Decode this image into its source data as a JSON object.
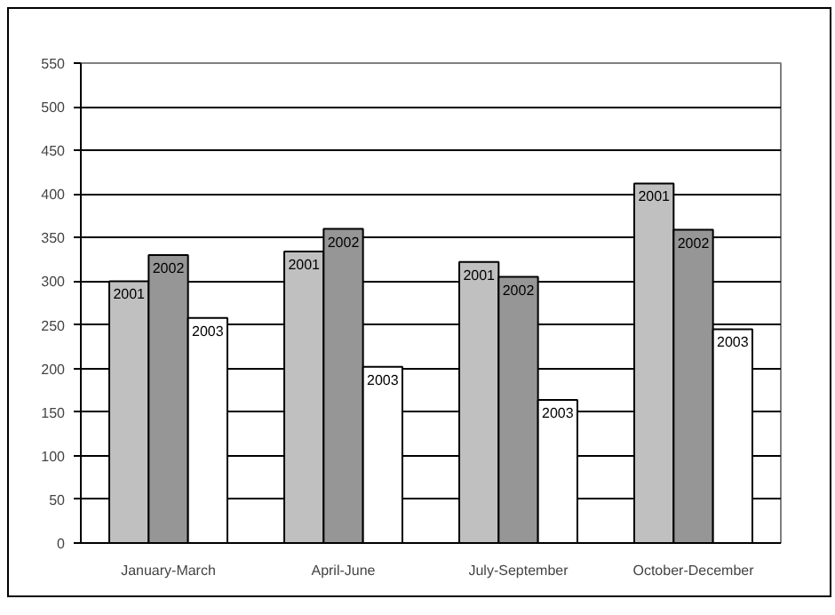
{
  "chart_data": {
    "type": "bar",
    "categories": [
      "January-March",
      "April-June",
      "July-September",
      "October-December"
    ],
    "series": [
      {
        "name": "2001",
        "color": "#c0c0c0",
        "values": [
          300,
          334,
          322,
          412
        ]
      },
      {
        "name": "2002",
        "color": "#969696",
        "values": [
          330,
          360,
          305,
          359
        ]
      },
      {
        "name": "2003",
        "color": "#ffffff",
        "values": [
          258,
          202,
          164,
          245
        ]
      }
    ],
    "ylim": [
      0,
      550
    ],
    "yticks": [
      0,
      50,
      100,
      150,
      200,
      250,
      300,
      350,
      400,
      450,
      500,
      550
    ],
    "grid": "y"
  }
}
